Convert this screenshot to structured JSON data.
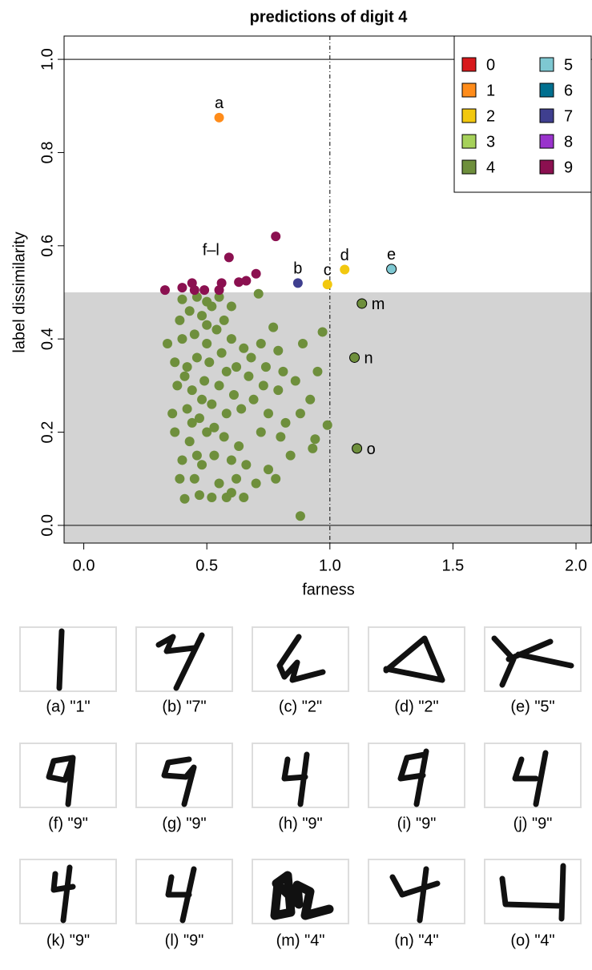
{
  "chart_data": {
    "type": "scatter",
    "title": "predictions of digit 4",
    "xlabel": "farness",
    "ylabel": "label dissimilarity",
    "xlim": [
      -0.08,
      2.065
    ],
    "ylim": [
      -0.038,
      1.05
    ],
    "xticks": [
      {
        "value": 0,
        "label": "0.0"
      },
      {
        "value": 0.5,
        "label": "0.5"
      },
      {
        "value": 1,
        "label": "1.0"
      },
      {
        "value": 1.5,
        "label": "1.5"
      },
      {
        "value": 2,
        "label": "2.0"
      }
    ],
    "yticks": [
      {
        "value": 0,
        "label": "0.0"
      },
      {
        "value": 0.2,
        "label": "0.2"
      },
      {
        "value": 0.4,
        "label": "0.4"
      },
      {
        "value": 0.6,
        "label": "0.6"
      },
      {
        "value": 0.8,
        "label": "0.8"
      },
      {
        "value": 1,
        "label": "1.0"
      }
    ],
    "shade_below_y": 0.5,
    "hlines": [
      0,
      1
    ],
    "vline": 1,
    "legend": "top-right",
    "series": [
      {
        "name": "0",
        "color": "#d7191c",
        "x": [],
        "y": []
      },
      {
        "name": "1",
        "color": "#ff8c1a",
        "x": [
          0.55
        ],
        "y": [
          0.875
        ],
        "point_labels": [
          "a"
        ]
      },
      {
        "name": "2",
        "color": "#f2c80f",
        "x": [
          0.99,
          1.06
        ],
        "y": [
          0.517,
          0.549
        ],
        "point_labels": [
          "c",
          "d"
        ]
      },
      {
        "name": "3",
        "color": "#a6d15a",
        "x": [],
        "y": []
      },
      {
        "name": "4",
        "color": "#6e8f3c",
        "x": [
          1.13,
          1.1,
          1.11,
          0.88,
          0.41,
          0.47,
          0.52,
          0.58,
          0.6,
          0.65,
          0.39,
          0.45,
          0.55,
          0.62,
          0.7,
          0.78,
          0.4,
          0.48,
          0.53,
          0.6,
          0.66,
          0.75,
          0.84,
          0.37,
          0.43,
          0.5,
          0.57,
          0.63,
          0.72,
          0.8,
          0.93,
          0.94,
          0.99,
          0.36,
          0.42,
          0.47,
          0.52,
          0.58,
          0.64,
          0.69,
          0.75,
          0.82,
          0.88,
          0.38,
          0.44,
          0.49,
          0.55,
          0.61,
          0.67,
          0.73,
          0.79,
          0.86,
          0.92,
          0.37,
          0.42,
          0.46,
          0.51,
          0.56,
          0.62,
          0.68,
          0.74,
          0.81,
          0.95,
          0.34,
          0.4,
          0.45,
          0.5,
          0.54,
          0.6,
          0.65,
          0.72,
          0.79,
          0.89,
          0.97,
          0.77,
          0.39,
          0.43,
          0.48,
          0.52,
          0.57,
          0.6,
          0.4,
          0.46,
          0.5,
          0.55,
          0.71,
          0.44,
          0.48,
          0.41,
          0.46,
          0.53,
          0.58,
          0.5
        ],
        "y": [
          0.476,
          0.36,
          0.165,
          0.02,
          0.057,
          0.065,
          0.06,
          0.06,
          0.07,
          0.06,
          0.1,
          0.1,
          0.09,
          0.1,
          0.09,
          0.1,
          0.14,
          0.13,
          0.15,
          0.14,
          0.13,
          0.12,
          0.15,
          0.2,
          0.18,
          0.2,
          0.19,
          0.17,
          0.2,
          0.19,
          0.165,
          0.185,
          0.215,
          0.24,
          0.25,
          0.23,
          0.26,
          0.24,
          0.25,
          0.27,
          0.24,
          0.22,
          0.24,
          0.3,
          0.29,
          0.31,
          0.3,
          0.28,
          0.32,
          0.3,
          0.29,
          0.31,
          0.27,
          0.35,
          0.34,
          0.36,
          0.35,
          0.37,
          0.34,
          0.36,
          0.34,
          0.33,
          0.33,
          0.39,
          0.4,
          0.41,
          0.39,
          0.42,
          0.4,
          0.38,
          0.39,
          0.375,
          0.39,
          0.415,
          0.425,
          0.44,
          0.46,
          0.45,
          0.47,
          0.44,
          0.47,
          0.485,
          0.49,
          0.48,
          0.49,
          0.497,
          0.22,
          0.27,
          0.32,
          0.15,
          0.21,
          0.33,
          0.43
        ],
        "point_labels": [
          "m",
          "n",
          "o",
          null,
          null,
          null,
          null,
          null,
          null,
          null,
          null,
          null,
          null,
          null,
          null,
          null,
          null,
          null,
          null,
          null,
          null,
          null,
          null,
          null,
          null,
          null,
          null,
          null,
          null,
          null,
          null,
          null,
          null,
          null,
          null,
          null,
          null,
          null,
          null,
          null,
          null,
          null,
          null,
          null,
          null,
          null,
          null,
          null,
          null,
          null,
          null,
          null,
          null,
          null,
          null,
          null,
          null,
          null,
          null,
          null,
          null,
          null,
          null,
          null,
          null,
          null,
          null,
          null,
          null,
          null,
          null,
          null,
          null,
          null,
          null,
          null,
          null,
          null,
          null,
          null,
          null,
          null,
          null,
          null,
          null,
          null,
          null,
          null,
          null,
          null,
          null,
          null,
          null
        ],
        "outlined": [
          true,
          true,
          true,
          false,
          false,
          false,
          false,
          false,
          false,
          false,
          false,
          false,
          false,
          false,
          false,
          false,
          false,
          false,
          false,
          false,
          false,
          false,
          false,
          false,
          false,
          false,
          false,
          false,
          false,
          false,
          false,
          false,
          false,
          false,
          false,
          false,
          false,
          false,
          false,
          false,
          false,
          false,
          false,
          false,
          false,
          false,
          false,
          false,
          false,
          false,
          false,
          false,
          false,
          false,
          false,
          false,
          false,
          false,
          false,
          false,
          false,
          false,
          false,
          false,
          false,
          false,
          false,
          false,
          false,
          false,
          false,
          false,
          false,
          false,
          false,
          false,
          false,
          false,
          false,
          false,
          false,
          false,
          false,
          false,
          false,
          false,
          false,
          false,
          false,
          false,
          false,
          false,
          false
        ]
      },
      {
        "name": "5",
        "color": "#7ec8d2",
        "x": [
          1.25
        ],
        "y": [
          0.55
        ],
        "point_labels": [
          "e"
        ],
        "outlined": [
          true
        ]
      },
      {
        "name": "6",
        "color": "#006f8f",
        "x": [],
        "y": []
      },
      {
        "name": "7",
        "color": "#3f3f8f",
        "x": [
          0.87
        ],
        "y": [
          0.52
        ],
        "point_labels": [
          "b"
        ]
      },
      {
        "name": "8",
        "color": "#9933cc",
        "x": [],
        "y": []
      },
      {
        "name": "9",
        "color": "#8b1050",
        "x": [
          0.33,
          0.4,
          0.44,
          0.45,
          0.49,
          0.55,
          0.56,
          0.59,
          0.63,
          0.66,
          0.7,
          0.78
        ],
        "y": [
          0.505,
          0.51,
          0.52,
          0.505,
          0.505,
          0.505,
          0.52,
          0.575,
          0.522,
          0.525,
          0.54,
          0.62
        ],
        "point_labels": [
          null,
          null,
          null,
          null,
          null,
          null,
          null,
          "f–l",
          null,
          null,
          null,
          null
        ]
      }
    ]
  },
  "panels": [
    {
      "caption": "(a) \"1\""
    },
    {
      "caption": "(b) \"7\""
    },
    {
      "caption": "(c) \"2\""
    },
    {
      "caption": "(d) \"2\""
    },
    {
      "caption": "(e) \"5\""
    },
    {
      "caption": "(f) \"9\""
    },
    {
      "caption": "(g) \"9\""
    },
    {
      "caption": "(h) \"9\""
    },
    {
      "caption": "(i) \"9\""
    },
    {
      "caption": "(j) \"9\""
    },
    {
      "caption": "(k) \"9\""
    },
    {
      "caption": "(l) \"9\""
    },
    {
      "caption": "(m) \"4\""
    },
    {
      "caption": "(n) \"4\""
    },
    {
      "caption": "(o) \"4\""
    }
  ]
}
